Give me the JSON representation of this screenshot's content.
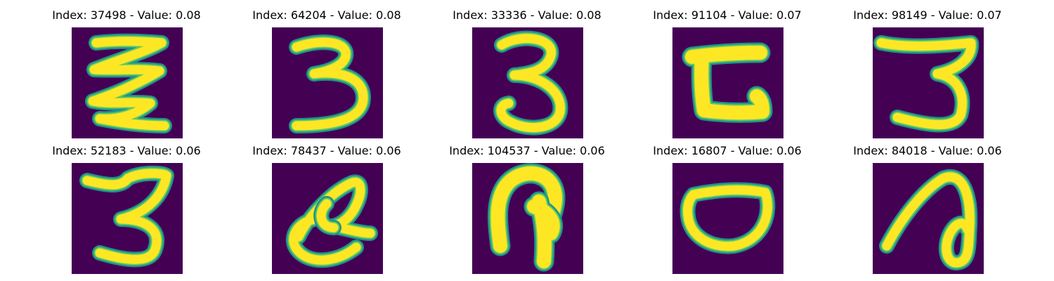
{
  "colors": {
    "background": "#440154",
    "stroke_core": "#fde725",
    "stroke_mid": "#5ec962",
    "stroke_edge": "#21918c"
  },
  "panels": [
    {
      "index_label": "Index: 37498 - Value: 0.08",
      "depicts": "zigzag"
    },
    {
      "index_label": "Index: 64204 - Value: 0.08",
      "depicts": "three"
    },
    {
      "index_label": "Index: 33336 - Value: 0.08",
      "depicts": "three"
    },
    {
      "index_label": "Index: 91104 - Value: 0.07",
      "depicts": "bracket"
    },
    {
      "index_label": "Index: 98149 - Value: 0.07",
      "depicts": "three"
    },
    {
      "index_label": "Index: 52183 - Value: 0.06",
      "depicts": "three"
    },
    {
      "index_label": "Index: 78437 - Value: 0.06",
      "depicts": "swirl"
    },
    {
      "index_label": "Index: 104537 - Value: 0.06",
      "depicts": "arch"
    },
    {
      "index_label": "Index: 16807 - Value: 0.06",
      "depicts": "bowl"
    },
    {
      "index_label": "Index: 84018 - Value: 0.06",
      "depicts": "loop"
    }
  ]
}
